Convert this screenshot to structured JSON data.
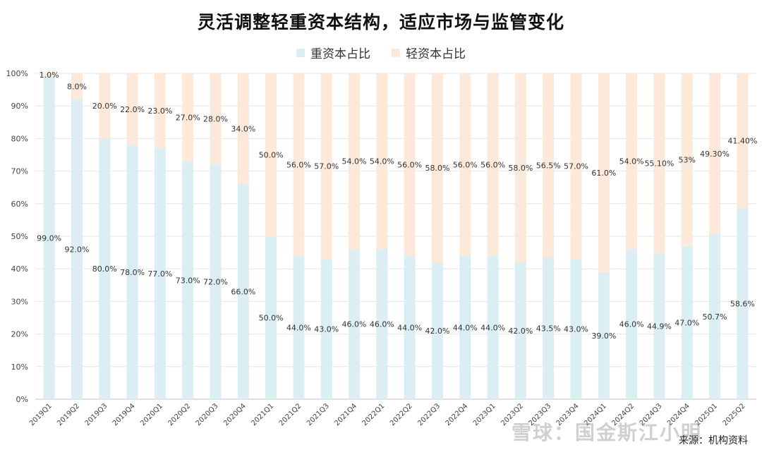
{
  "chart_data": {
    "type": "bar",
    "stacked": true,
    "title": "灵活调整轻重资本结构，适应市场与监管变化",
    "ylim": [
      0,
      100
    ],
    "yticks": [
      "0%",
      "10%",
      "20%",
      "30%",
      "40%",
      "50%",
      "60%",
      "70%",
      "80%",
      "90%",
      "100%"
    ],
    "grid": true,
    "legend_position": "top",
    "categories": [
      "2019Q1",
      "2019Q2",
      "2019Q3",
      "2019Q4",
      "2020Q1",
      "2020Q2",
      "2020Q3",
      "2020Q4",
      "2021Q1",
      "2021Q2",
      "2021Q3",
      "2021Q4",
      "2022Q1",
      "2022Q2",
      "2022Q3",
      "2022Q4",
      "2023Q1",
      "2023Q2",
      "2023Q3",
      "2023Q4",
      "2024Q1",
      "2024Q2",
      "2024Q3",
      "2024Q4",
      "2025Q1",
      "2025Q2"
    ],
    "series": [
      {
        "name": "重资本占比",
        "color": "#daeef3",
        "values": [
          99.0,
          92.0,
          80.0,
          78.0,
          77.0,
          73.0,
          72.0,
          66.0,
          50.0,
          44.0,
          43.0,
          46.0,
          46.0,
          44.0,
          42.0,
          44.0,
          44.0,
          42.0,
          43.5,
          43.0,
          39.0,
          46.0,
          44.9,
          47.0,
          50.7,
          58.6
        ],
        "labels": [
          "99.0%",
          "92.0%",
          "80.0%",
          "78.0%",
          "77.0%",
          "73.0%",
          "72.0%",
          "66.0%",
          "50.0%",
          "44.0%",
          "43.0%",
          "46.0%",
          "46.0%",
          "44.0%",
          "42.0%",
          "44.0%",
          "44.0%",
          "42.0%",
          "43.5%",
          "43.0%",
          "39.0%",
          "46.0%",
          "44.9%",
          "47.0%",
          "50.7%",
          "58.6%"
        ]
      },
      {
        "name": "轻资本占比",
        "color": "#fde9d9",
        "values": [
          1.0,
          8.0,
          20.0,
          22.0,
          23.0,
          27.0,
          28.0,
          34.0,
          50.0,
          56.0,
          57.0,
          54.0,
          54.0,
          56.0,
          58.0,
          56.0,
          56.0,
          58.0,
          56.5,
          57.0,
          61.0,
          54.0,
          55.1,
          53.0,
          49.3,
          41.4
        ],
        "labels": [
          "1.0%",
          "8.0%",
          "20.0%",
          "22.0%",
          "23.0%",
          "27.0%",
          "28.0%",
          "34.0%",
          "50.0%",
          "56.0%",
          "57.0%",
          "54.0%",
          "54.0%",
          "56.0%",
          "58.0%",
          "56.0%",
          "56.0%",
          "58.0%",
          "56.5%",
          "57.0%",
          "61.0%",
          "54.0%",
          "55.10%",
          "53%",
          "49.30%",
          "41.40%"
        ]
      }
    ]
  },
  "source": "来源：机构资料",
  "watermark": "雪球：国金斯江小明"
}
